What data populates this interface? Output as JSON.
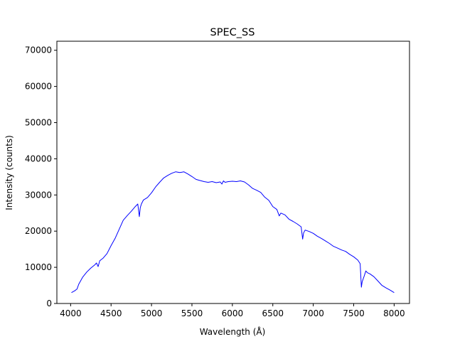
{
  "chart_data": {
    "type": "line",
    "title": "SPEC_SS",
    "xlabel": "Wavelength (Å)",
    "ylabel": "Intensity (counts)",
    "xlim": [
      3830,
      8190
    ],
    "ylim": [
      0,
      72500
    ],
    "xticks": [
      4000,
      4500,
      5000,
      5500,
      6000,
      6500,
      7000,
      7500,
      8000
    ],
    "yticks": [
      0,
      10000,
      20000,
      30000,
      40000,
      50000,
      60000,
      70000
    ],
    "grid": false,
    "series": [
      {
        "color": "#0000ff",
        "x": [
          4010,
          4050,
          4080,
          4100,
          4150,
          4200,
          4250,
          4300,
          4320,
          4340,
          4360,
          4400,
          4450,
          4500,
          4550,
          4600,
          4650,
          4700,
          4750,
          4800,
          4830,
          4850,
          4861,
          4875,
          4900,
          4950,
          5000,
          5050,
          5100,
          5150,
          5200,
          5250,
          5300,
          5350,
          5400,
          5450,
          5500,
          5550,
          5600,
          5650,
          5700,
          5750,
          5800,
          5850,
          5870,
          5890,
          5910,
          5950,
          6000,
          6050,
          6100,
          6150,
          6200,
          6250,
          6300,
          6350,
          6400,
          6450,
          6500,
          6550,
          6563,
          6580,
          6600,
          6650,
          6700,
          6750,
          6800,
          6850,
          6869,
          6880,
          6900,
          6950,
          7000,
          7050,
          7100,
          7150,
          7200,
          7250,
          7300,
          7350,
          7400,
          7450,
          7500,
          7550,
          7580,
          7595,
          7605,
          7630,
          7650,
          7670,
          7700,
          7750,
          7800,
          7850,
          7900,
          7950,
          8000
        ],
        "y": [
          3000,
          3500,
          4000,
          5300,
          7300,
          8700,
          9800,
          10700,
          11200,
          10200,
          11800,
          12500,
          13800,
          16000,
          18000,
          20500,
          23000,
          24300,
          25500,
          26800,
          27500,
          24000,
          26500,
          27500,
          28600,
          29300,
          30600,
          32200,
          33500,
          34700,
          35400,
          36000,
          36400,
          36200,
          36400,
          35800,
          35100,
          34300,
          34000,
          33700,
          33500,
          33700,
          33400,
          33600,
          33000,
          33900,
          33500,
          33700,
          33800,
          33700,
          33900,
          33600,
          32800,
          31800,
          31300,
          30700,
          29400,
          28500,
          26800,
          26000,
          25200,
          24200,
          25000,
          24500,
          23300,
          22700,
          22000,
          21200,
          17800,
          19500,
          20300,
          19900,
          19400,
          18600,
          18000,
          17300,
          16600,
          15800,
          15300,
          14800,
          14400,
          13600,
          12900,
          12000,
          11000,
          4500,
          6000,
          7600,
          9000,
          8500,
          8200,
          7400,
          6200,
          5000,
          4300,
          3700,
          3000
        ]
      }
    ]
  }
}
